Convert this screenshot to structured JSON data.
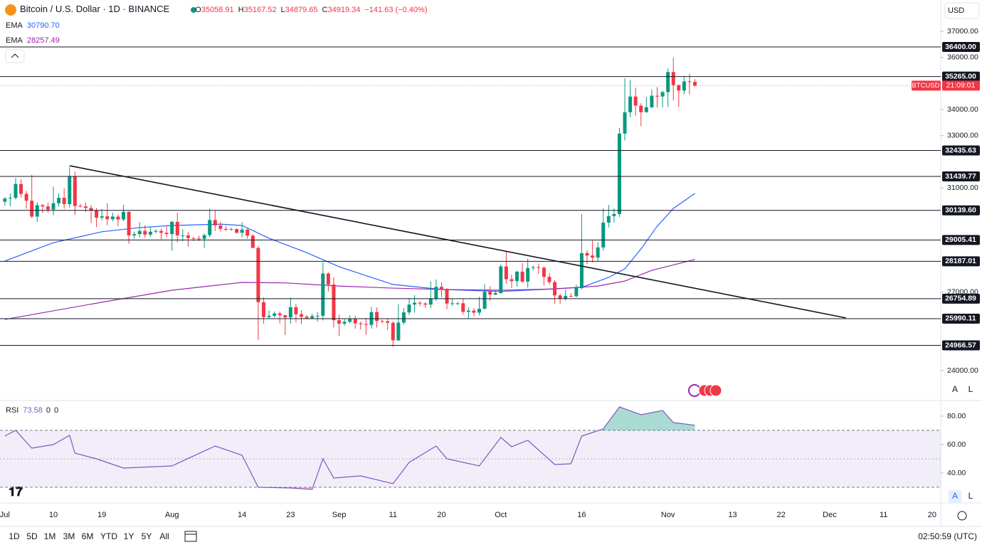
{
  "header": {
    "title": "Bitcoin / U.S. Dollar · 1D · BINANCE",
    "change": "−141.63 (−0.40%)",
    "currency": "USD"
  },
  "chart_data": {
    "type": "candlestick",
    "ohlc_keys": [
      "O",
      "H",
      "L",
      "C"
    ],
    "up_color": "#089981",
    "down_color": "#f23645",
    "xlim": [
      -0.9,
      173.6
    ],
    "ylim": [
      22855,
      38199
    ],
    "xticks": [
      {
        "value": 0,
        "label": "Jul"
      },
      {
        "value": 9,
        "label": "10"
      },
      {
        "value": 18,
        "label": "19"
      },
      {
        "value": 31,
        "label": "Aug"
      },
      {
        "value": 44,
        "label": "14"
      },
      {
        "value": 53,
        "label": "23"
      },
      {
        "value": 62,
        "label": "Sep"
      },
      {
        "value": 72,
        "label": "11"
      },
      {
        "value": 81,
        "label": "20"
      },
      {
        "value": 92,
        "label": "Oct"
      },
      {
        "value": 107,
        "label": "16"
      },
      {
        "value": 123,
        "label": "Nov"
      },
      {
        "value": 135,
        "label": "13"
      },
      {
        "value": 144,
        "label": "22"
      },
      {
        "value": 153,
        "label": "Dec"
      },
      {
        "value": 163,
        "label": "11"
      },
      {
        "value": 172,
        "label": "20"
      }
    ],
    "yticks": [
      {
        "value": 37000,
        "label": "37000.00"
      },
      {
        "value": 36000,
        "label": "36000.00"
      },
      {
        "value": 34000,
        "label": "34000.00"
      },
      {
        "value": 33000,
        "label": "33000.00"
      },
      {
        "value": 31000,
        "label": "31000.00"
      },
      {
        "value": 27000,
        "label": "27000.00"
      },
      {
        "value": 24000,
        "label": "24000.00"
      }
    ],
    "ohlc": [
      [
        30470,
        30650,
        30320,
        30590
      ],
      [
        30590,
        30790,
        30300,
        30620
      ],
      [
        30620,
        31380,
        30560,
        31150
      ],
      [
        31150,
        31330,
        30640,
        30770
      ],
      [
        30770,
        30880,
        30200,
        30510
      ],
      [
        30510,
        31500,
        29850,
        29900
      ],
      [
        29900,
        30450,
        29700,
        30340
      ],
      [
        30340,
        30380,
        30050,
        30290
      ],
      [
        30290,
        30430,
        30060,
        30170
      ],
      [
        30170,
        31050,
        29950,
        30410
      ],
      [
        30410,
        30800,
        30280,
        30620
      ],
      [
        30620,
        30980,
        30200,
        30380
      ],
      [
        30380,
        31800,
        30250,
        31450
      ],
      [
        31450,
        31630,
        29960,
        30310
      ],
      [
        30310,
        30390,
        30250,
        30290
      ],
      [
        30290,
        30450,
        30080,
        30230
      ],
      [
        30230,
        30340,
        29660,
        30140
      ],
      [
        30140,
        30230,
        29500,
        29860
      ],
      [
        29860,
        30190,
        29760,
        29910
      ],
      [
        29910,
        30410,
        29570,
        29800
      ],
      [
        29800,
        30050,
        29720,
        29900
      ],
      [
        29900,
        29990,
        29530,
        29790
      ],
      [
        29790,
        30350,
        29730,
        30080
      ],
      [
        30080,
        30100,
        28860,
        29180
      ],
      [
        29180,
        29330,
        29050,
        29230
      ],
      [
        29230,
        29690,
        29100,
        29350
      ],
      [
        29350,
        29570,
        29090,
        29210
      ],
      [
        29210,
        29530,
        29120,
        29320
      ],
      [
        29320,
        29420,
        29260,
        29350
      ],
      [
        29350,
        29450,
        29030,
        29280
      ],
      [
        29280,
        29520,
        29110,
        29230
      ],
      [
        29230,
        29740,
        28590,
        29700
      ],
      [
        29700,
        30050,
        28920,
        29180
      ],
      [
        29180,
        29410,
        28960,
        29180
      ],
      [
        29180,
        29310,
        28750,
        29080
      ],
      [
        29080,
        29110,
        28960,
        29060
      ],
      [
        29060,
        29170,
        28960,
        29050
      ],
      [
        29050,
        29250,
        28700,
        29190
      ],
      [
        29190,
        30200,
        29110,
        29770
      ],
      [
        29770,
        30140,
        29350,
        29560
      ],
      [
        29560,
        29700,
        29330,
        29430
      ],
      [
        29430,
        29540,
        29350,
        29400
      ],
      [
        29400,
        29480,
        29360,
        29420
      ],
      [
        29420,
        29450,
        29250,
        29280
      ],
      [
        29280,
        29680,
        29100,
        29400
      ],
      [
        29400,
        29470,
        29050,
        29170
      ],
      [
        29170,
        29230,
        28700,
        28700
      ],
      [
        28700,
        28780,
        25170,
        26620
      ],
      [
        26620,
        26800,
        25800,
        26050
      ],
      [
        26050,
        26300,
        25990,
        26100
      ],
      [
        26100,
        26270,
        26030,
        26190
      ],
      [
        26190,
        26260,
        25810,
        26120
      ],
      [
        26120,
        26140,
        25360,
        26040
      ],
      [
        26040,
        26800,
        25800,
        26430
      ],
      [
        26430,
        26550,
        25850,
        26160
      ],
      [
        26160,
        26310,
        25780,
        26060
      ],
      [
        26060,
        26130,
        25970,
        26010
      ],
      [
        26010,
        26180,
        25980,
        26090
      ],
      [
        26090,
        26240,
        25880,
        26100
      ],
      [
        26100,
        28140,
        25920,
        27720
      ],
      [
        27720,
        27760,
        27030,
        27300
      ],
      [
        27300,
        27570,
        25650,
        25930
      ],
      [
        25930,
        26140,
        25330,
        25800
      ],
      [
        25800,
        25970,
        25720,
        25870
      ],
      [
        25870,
        26120,
        25810,
        25970
      ],
      [
        25970,
        26100,
        25600,
        25810
      ],
      [
        25810,
        25880,
        25570,
        25780
      ],
      [
        25780,
        26020,
        25370,
        25750
      ],
      [
        25750,
        26440,
        25610,
        26240
      ],
      [
        26240,
        26420,
        25650,
        25900
      ],
      [
        25900,
        25940,
        25810,
        25890
      ],
      [
        25890,
        25990,
        25550,
        25830
      ],
      [
        25830,
        25890,
        24900,
        25160
      ],
      [
        25160,
        26540,
        25140,
        25840
      ],
      [
        25840,
        26400,
        25760,
        26230
      ],
      [
        26230,
        26780,
        26130,
        26530
      ],
      [
        26530,
        26890,
        26220,
        26600
      ],
      [
        26600,
        26660,
        26470,
        26570
      ],
      [
        26570,
        26620,
        26400,
        26530
      ],
      [
        26530,
        27420,
        26390,
        26760
      ],
      [
        26760,
        27490,
        26670,
        27210
      ],
      [
        27210,
        27380,
        26810,
        27130
      ],
      [
        27130,
        27160,
        26350,
        26570
      ],
      [
        26570,
        26740,
        26480,
        26580
      ],
      [
        26580,
        26630,
        26510,
        26580
      ],
      [
        26580,
        26740,
        26140,
        26250
      ],
      [
        26250,
        26430,
        25990,
        26300
      ],
      [
        26300,
        26390,
        26080,
        26220
      ],
      [
        26220,
        26830,
        26110,
        26370
      ],
      [
        26370,
        27310,
        26340,
        27020
      ],
      [
        27020,
        27230,
        26670,
        26910
      ],
      [
        26910,
        27090,
        26890,
        26970
      ],
      [
        26970,
        28070,
        26950,
        27990
      ],
      [
        27990,
        28600,
        27330,
        27500
      ],
      [
        27500,
        27670,
        27160,
        27430
      ],
      [
        27430,
        27830,
        27210,
        27790
      ],
      [
        27790,
        28120,
        27360,
        27410
      ],
      [
        27410,
        28290,
        27180,
        27930
      ],
      [
        27930,
        28030,
        27840,
        27960
      ],
      [
        27960,
        28100,
        27710,
        27940
      ],
      [
        27940,
        27990,
        27260,
        27590
      ],
      [
        27590,
        27740,
        27300,
        27390
      ],
      [
        27390,
        27480,
        26560,
        26880
      ],
      [
        26880,
        26940,
        26560,
        26760
      ],
      [
        26760,
        27100,
        26680,
        26860
      ],
      [
        26860,
        26970,
        26820,
        26850
      ],
      [
        26850,
        27290,
        26810,
        27160
      ],
      [
        27160,
        30000,
        27110,
        28500
      ],
      [
        28500,
        28610,
        28090,
        28410
      ],
      [
        28410,
        28980,
        28150,
        28330
      ],
      [
        28330,
        28920,
        28180,
        28720
      ],
      [
        28720,
        30210,
        28600,
        29670
      ],
      [
        29670,
        30350,
        29480,
        29920
      ],
      [
        29920,
        30210,
        29670,
        30000
      ],
      [
        30000,
        33300,
        29880,
        33080
      ],
      [
        33080,
        35200,
        32820,
        33900
      ],
      [
        33900,
        35130,
        33700,
        34500
      ],
      [
        34500,
        34840,
        33770,
        34150
      ],
      [
        34150,
        34240,
        33360,
        33900
      ],
      [
        33900,
        34480,
        33880,
        34090
      ],
      [
        34090,
        34770,
        34050,
        34530
      ],
      [
        34530,
        34860,
        34080,
        34500
      ],
      [
        34500,
        34720,
        34080,
        34670
      ],
      [
        34670,
        35580,
        34100,
        35440
      ],
      [
        35440,
        35990,
        34350,
        34940
      ],
      [
        34940,
        34950,
        34100,
        34730
      ],
      [
        34730,
        35290,
        34590,
        35080
      ],
      [
        35080,
        35380,
        34580,
        35060
      ],
      [
        35058.91,
        35167.52,
        34879.65,
        34919.34
      ]
    ],
    "ema": [
      {
        "name": "EMA",
        "legend_value": "30790.70",
        "color": "#2962ff",
        "x": [
          0,
          9,
          18,
          25,
          31,
          40,
          44,
          49,
          56,
          62,
          72,
          81,
          92,
          100,
          107,
          112,
          115,
          118,
          121,
          124,
          128
        ],
        "values": [
          28200,
          28900,
          29320,
          29480,
          29560,
          29610,
          29560,
          29070,
          28520,
          27980,
          27300,
          27110,
          27030,
          27110,
          27190,
          27570,
          27900,
          28660,
          29530,
          30210,
          30790.7
        ]
      },
      {
        "name": "EMA",
        "legend_value": "28257.49",
        "color": "#9c27b0",
        "x": [
          0,
          18,
          31,
          44,
          52,
          62,
          72,
          81,
          92,
          102,
          110,
          115,
          120,
          128
        ],
        "values": [
          25960,
          26620,
          27080,
          27380,
          27360,
          27240,
          27160,
          27110,
          27080,
          27130,
          27240,
          27430,
          27840,
          28257.49
        ]
      }
    ],
    "levels": [
      {
        "value": 36400,
        "label": "36400.00"
      },
      {
        "value": 35265,
        "label": "35265.00"
      },
      {
        "value": 32435.63,
        "label": "32435.63"
      },
      {
        "value": 31439.77,
        "label": "31439.77"
      },
      {
        "value": 30139.6,
        "label": "30139.60"
      },
      {
        "value": 29005.41,
        "label": "29005.41"
      },
      {
        "value": 28187.01,
        "label": "28187.01"
      },
      {
        "value": 26754.89,
        "label": "26754.89"
      },
      {
        "value": 25990.11,
        "label": "25990.11"
      },
      {
        "value": 24966.57,
        "label": "24966.57"
      }
    ],
    "trendline": {
      "x": [
        12,
        156
      ],
      "values": [
        31850,
        26020
      ]
    },
    "price_tag": {
      "symbol": "BTCUSD",
      "countdown": "21:09:01"
    },
    "rsi": {
      "name": "RSI",
      "params": [
        "0",
        "0"
      ],
      "color": "#7e57c2",
      "ylim": [
        19,
        91
      ],
      "band": [
        30,
        70
      ],
      "mid": 50,
      "yticks": [
        {
          "value": 80,
          "label": "80.00"
        },
        {
          "value": 60,
          "label": "60.00"
        },
        {
          "value": 40,
          "label": "40.00"
        }
      ],
      "x": [
        0,
        2,
        5,
        9,
        12,
        13,
        17,
        22,
        31,
        39,
        44,
        47,
        53,
        57,
        59,
        61,
        66,
        72,
        75,
        80,
        82,
        88,
        92,
        94,
        97,
        102,
        105,
        107,
        111,
        114,
        118,
        122,
        124,
        128
      ],
      "values": [
        66,
        70,
        57.5,
        60,
        66.5,
        54,
        50,
        43.5,
        45,
        59,
        52.5,
        30,
        29.5,
        28.5,
        50,
        36.5,
        38,
        32.5,
        47.5,
        59,
        50,
        45,
        65,
        58.5,
        63,
        46,
        46.5,
        66,
        71,
        86.5,
        81,
        84,
        75.5,
        73.58
      ]
    },
    "scale_buttons": [
      "A",
      "L"
    ]
  },
  "toolbar": {
    "ranges": [
      "1D",
      "5D",
      "1M",
      "3M",
      "6M",
      "YTD",
      "1Y",
      "5Y",
      "All"
    ],
    "clock": "02:50:59 (UTC)"
  }
}
